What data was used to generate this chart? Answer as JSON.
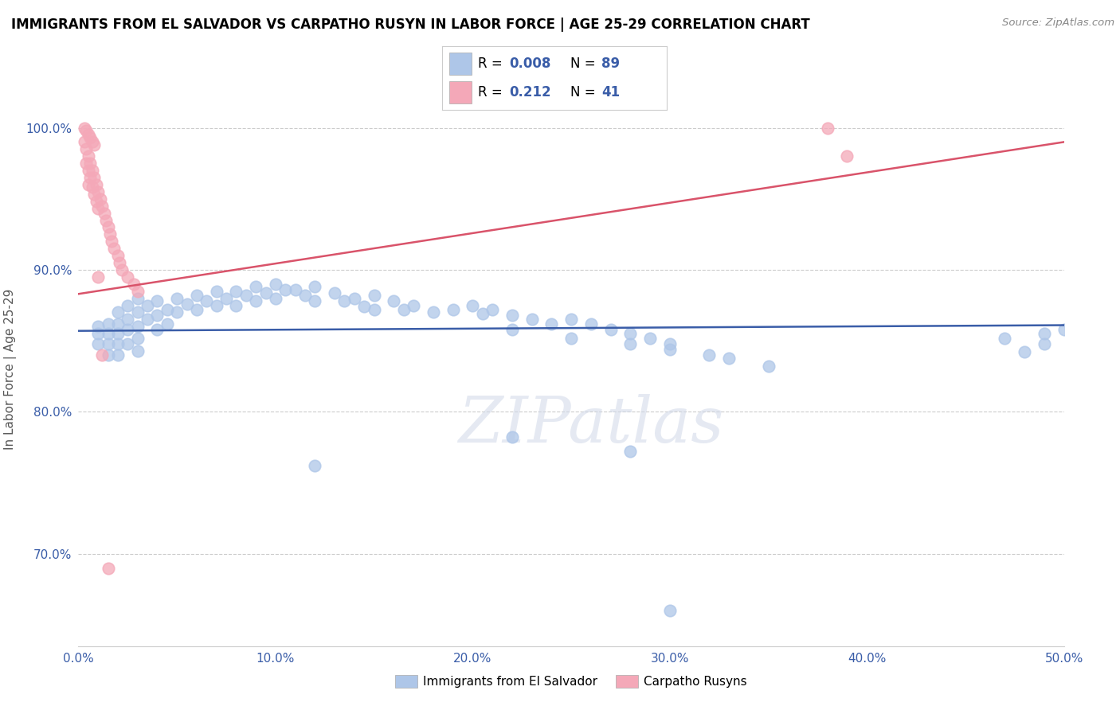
{
  "title": "IMMIGRANTS FROM EL SALVADOR VS CARPATHO RUSYN IN LABOR FORCE | AGE 25-29 CORRELATION CHART",
  "source_text": "Source: ZipAtlas.com",
  "ylabel": "In Labor Force | Age 25-29",
  "xlim": [
    0.0,
    0.5
  ],
  "ylim": [
    0.635,
    1.025
  ],
  "xtick_labels": [
    "0.0%",
    "10.0%",
    "20.0%",
    "30.0%",
    "40.0%",
    "50.0%"
  ],
  "xtick_values": [
    0.0,
    0.1,
    0.2,
    0.3,
    0.4,
    0.5
  ],
  "ytick_labels": [
    "70.0%",
    "80.0%",
    "90.0%",
    "100.0%"
  ],
  "ytick_values": [
    0.7,
    0.8,
    0.9,
    1.0
  ],
  "blue_R": 0.008,
  "blue_N": 89,
  "pink_R": 0.212,
  "pink_N": 41,
  "blue_color": "#aec6e8",
  "pink_color": "#f4a8b8",
  "blue_line_color": "#3a5da8",
  "pink_line_color": "#d9536a",
  "legend_blue_label": "Immigrants from El Salvador",
  "legend_pink_label": "Carpatho Rusyns",
  "watermark": "ZIPatlas",
  "blue_scatter_x": [
    0.01,
    0.01,
    0.01,
    0.015,
    0.015,
    0.015,
    0.015,
    0.02,
    0.02,
    0.02,
    0.02,
    0.02,
    0.025,
    0.025,
    0.025,
    0.025,
    0.03,
    0.03,
    0.03,
    0.03,
    0.03,
    0.035,
    0.035,
    0.04,
    0.04,
    0.04,
    0.045,
    0.045,
    0.05,
    0.05,
    0.055,
    0.06,
    0.06,
    0.065,
    0.07,
    0.07,
    0.075,
    0.08,
    0.08,
    0.085,
    0.09,
    0.09,
    0.095,
    0.1,
    0.1,
    0.105,
    0.11,
    0.115,
    0.12,
    0.12,
    0.13,
    0.135,
    0.14,
    0.145,
    0.15,
    0.15,
    0.16,
    0.165,
    0.17,
    0.18,
    0.19,
    0.2,
    0.205,
    0.21,
    0.22,
    0.23,
    0.24,
    0.25,
    0.26,
    0.27,
    0.28,
    0.29,
    0.3,
    0.22,
    0.25,
    0.28,
    0.3,
    0.32,
    0.33,
    0.35,
    0.12,
    0.22,
    0.28,
    0.3,
    0.5,
    0.49,
    0.49,
    0.48,
    0.47
  ],
  "blue_scatter_y": [
    0.86,
    0.855,
    0.848,
    0.862,
    0.855,
    0.848,
    0.84,
    0.87,
    0.862,
    0.855,
    0.848,
    0.84,
    0.875,
    0.865,
    0.858,
    0.848,
    0.88,
    0.87,
    0.86,
    0.852,
    0.843,
    0.875,
    0.865,
    0.878,
    0.868,
    0.858,
    0.872,
    0.862,
    0.88,
    0.87,
    0.876,
    0.882,
    0.872,
    0.878,
    0.885,
    0.875,
    0.88,
    0.885,
    0.875,
    0.882,
    0.888,
    0.878,
    0.884,
    0.89,
    0.88,
    0.886,
    0.886,
    0.882,
    0.888,
    0.878,
    0.884,
    0.878,
    0.88,
    0.874,
    0.882,
    0.872,
    0.878,
    0.872,
    0.875,
    0.87,
    0.872,
    0.875,
    0.869,
    0.872,
    0.868,
    0.865,
    0.862,
    0.865,
    0.862,
    0.858,
    0.855,
    0.852,
    0.848,
    0.858,
    0.852,
    0.848,
    0.844,
    0.84,
    0.838,
    0.832,
    0.762,
    0.782,
    0.772,
    0.66,
    0.858,
    0.855,
    0.848,
    0.842,
    0.852
  ],
  "pink_scatter_x": [
    0.003,
    0.004,
    0.004,
    0.005,
    0.005,
    0.005,
    0.006,
    0.006,
    0.007,
    0.007,
    0.008,
    0.008,
    0.009,
    0.009,
    0.01,
    0.01,
    0.011,
    0.012,
    0.013,
    0.014,
    0.015,
    0.016,
    0.017,
    0.018,
    0.02,
    0.021,
    0.022,
    0.025,
    0.028,
    0.03,
    0.003,
    0.004,
    0.005,
    0.006,
    0.007,
    0.008,
    0.01,
    0.012,
    0.015,
    0.38,
    0.39
  ],
  "pink_scatter_y": [
    0.99,
    0.985,
    0.975,
    0.98,
    0.97,
    0.96,
    0.975,
    0.965,
    0.97,
    0.958,
    0.965,
    0.953,
    0.96,
    0.948,
    0.955,
    0.943,
    0.95,
    0.945,
    0.94,
    0.935,
    0.93,
    0.925,
    0.92,
    0.915,
    0.91,
    0.905,
    0.9,
    0.895,
    0.89,
    0.885,
    1.0,
    0.998,
    0.995,
    0.993,
    0.99,
    0.988,
    0.895,
    0.84,
    0.69,
    1.0,
    0.98
  ],
  "blue_trend_x": [
    0.0,
    0.5
  ],
  "blue_trend_y": [
    0.857,
    0.861
  ],
  "pink_trend_x": [
    0.0,
    0.5
  ],
  "pink_trend_y": [
    0.883,
    0.99
  ]
}
